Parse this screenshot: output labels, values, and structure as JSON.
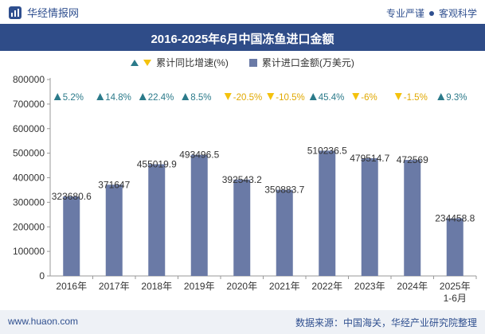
{
  "header": {
    "brand": "华经情报网",
    "tagline_left": "专业严谨",
    "tagline_right": "客观科学"
  },
  "footer": {
    "website": "www.huaon.com",
    "source": "数据来源：中国海关，华经产业研究院整理"
  },
  "colors": {
    "bar": "#6a7aa6",
    "up": "#2b7a8a",
    "down": "#f4c20d",
    "header_bg": "#2f4c88"
  },
  "chart_data": {
    "type": "bar",
    "title": "2016-2025年6月中国冻鱼进口金额",
    "categories": [
      "2016年",
      "2017年",
      "2018年",
      "2019年",
      "2020年",
      "2021年",
      "2022年",
      "2023年",
      "2024年",
      "2025年 1-6月"
    ],
    "series": [
      {
        "name": "累计进口金额(万美元)",
        "values": [
          323680.6,
          371647,
          455019.9,
          493496.5,
          392543.2,
          350883.7,
          510236.5,
          479514.7,
          472569,
          234458.8
        ],
        "labels": [
          "323680.6",
          "371647",
          "455019.9",
          "493496.5",
          "392543.2",
          "350883.7",
          "510236.5",
          "479514.7",
          "472569",
          "234458.8"
        ]
      },
      {
        "name": "累计同比增速(%)",
        "values": [
          5.2,
          14.8,
          22.4,
          8.5,
          -20.5,
          -10.5,
          45.4,
          -6,
          -1.5,
          9.3
        ],
        "labels": [
          "5.2%",
          "14.8%",
          "22.4%",
          "8.5%",
          "-20.5%",
          "-10.5%",
          "45.4%",
          "-6%",
          "-1.5%",
          "9.3%"
        ]
      }
    ],
    "ylim": [
      0,
      800000
    ],
    "yticks": [
      "0",
      "100000",
      "200000",
      "300000",
      "400000",
      "500000",
      "600000",
      "700000",
      "800000"
    ],
    "legend_position": "top-center",
    "grid": false
  }
}
